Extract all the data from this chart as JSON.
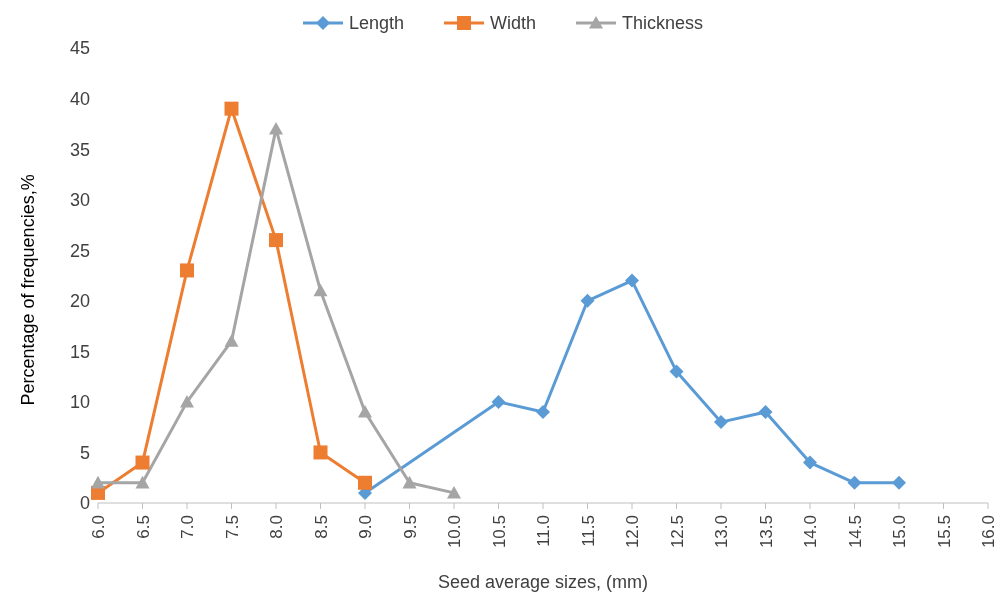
{
  "chart_data": {
    "type": "line",
    "xlabel": "Seed average sizes,  (mm)",
    "ylabel": "Percentage of frequencies,%",
    "categories": [
      "6.0",
      "6.5",
      "7.0",
      "7.5",
      "8.0",
      "8.5",
      "9.0",
      "9.5",
      "10.0",
      "10.5",
      "11.0",
      "11.5",
      "12.0",
      "12.5",
      "13.0",
      "13.5",
      "14.0",
      "14.5",
      "15.0",
      "15.5",
      "16.0"
    ],
    "series": [
      {
        "name": "Length",
        "color": "#5b9bd5",
        "marker": "diamond",
        "values": [
          null,
          null,
          null,
          null,
          null,
          null,
          1,
          null,
          null,
          10,
          9,
          20,
          22,
          13,
          8,
          9,
          4,
          2,
          2,
          null,
          null
        ]
      },
      {
        "name": "Width",
        "color": "#ed7d31",
        "marker": "square",
        "values": [
          1,
          4,
          23,
          39,
          26,
          5,
          2,
          null,
          null,
          null,
          null,
          null,
          null,
          null,
          null,
          null,
          null,
          null,
          null,
          null,
          null
        ]
      },
      {
        "name": "Thickness",
        "color": "#a5a5a5",
        "marker": "triangle",
        "values": [
          2,
          2,
          10,
          16,
          37,
          21,
          9,
          2,
          1,
          null,
          null,
          null,
          null,
          null,
          null,
          null,
          null,
          null,
          null,
          null,
          null
        ]
      }
    ],
    "ylim": [
      0,
      45
    ],
    "yticks": [
      0,
      5,
      10,
      15,
      20,
      25,
      30,
      35,
      40,
      45
    ],
    "grid": false,
    "legend": "top"
  }
}
